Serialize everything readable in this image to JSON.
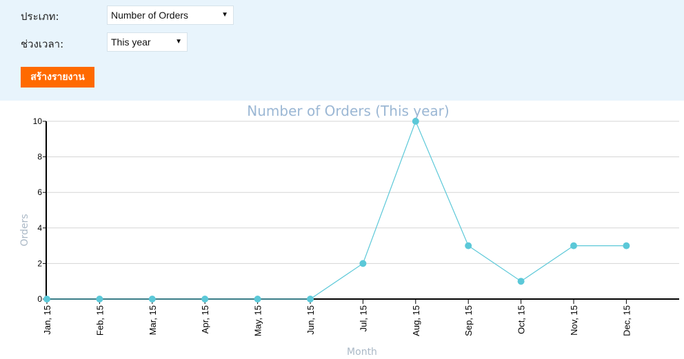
{
  "form": {
    "type_label": "ประเภท:",
    "type_value": "Number of Orders",
    "period_label": "ช่วงเวลา:",
    "period_value": "This year",
    "submit_label": "สร้างรายงาน"
  },
  "colors": {
    "panel_bg": "#e8f4fc",
    "button": "#ff6a00",
    "series": "#5bc8d8",
    "title": "#9bb7d4"
  },
  "chart_data": {
    "type": "line",
    "title": "Number of Orders (This year)",
    "xlabel": "Month",
    "ylabel": "Orders",
    "categories": [
      "Jan, 15",
      "Feb, 15",
      "Mar, 15",
      "Apr, 15",
      "May, 15",
      "Jun, 15",
      "Jul, 15",
      "Aug, 15",
      "Sep, 15",
      "Oct, 15",
      "Nov, 15",
      "Dec, 15"
    ],
    "series": [
      {
        "values": [
          0,
          0,
          0,
          0,
          0,
          0,
          2,
          10,
          3,
          1,
          3,
          3
        ]
      }
    ],
    "ylim": [
      0,
      10
    ],
    "yticks": [
      "0",
      "2",
      "4",
      "6",
      "8",
      "10"
    ],
    "grid": true,
    "legend": "none"
  }
}
